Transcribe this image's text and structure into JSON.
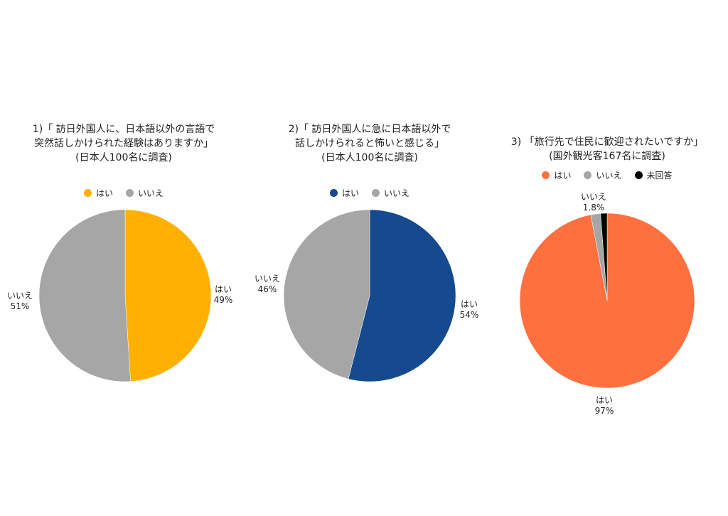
{
  "chart_data": [
    {
      "type": "pie",
      "title_lines": [
        "1)「 訪日外国人に、日本語以外の言語で",
        "突然話しかけられた経験はありますか」",
        "(日本人100名に調査)"
      ],
      "legend": [
        "はい",
        "いいえ"
      ],
      "slices": [
        {
          "label": "はい",
          "value": 49,
          "value_label": "49%",
          "color": "#FFB000"
        },
        {
          "label": "いいえ",
          "value": 51,
          "value_label": "51%",
          "color": "#A6A6A6"
        }
      ]
    },
    {
      "type": "pie",
      "title_lines": [
        "2)「 訪日外国人に急に日本語以外で",
        "話しかけられると怖いと感じる」",
        "(日本人100名に調査)"
      ],
      "legend": [
        "はい",
        "いいえ"
      ],
      "slices": [
        {
          "label": "はい",
          "value": 54,
          "value_label": "54%",
          "color": "#154A8F"
        },
        {
          "label": "いいえ",
          "value": 46,
          "value_label": "46%",
          "color": "#A6A6A6"
        }
      ]
    },
    {
      "type": "pie",
      "title_lines": [
        "3) 「旅行先で住民に歓迎されたいですか」",
        "(国外観光客167名に調査)"
      ],
      "legend": [
        "はい",
        "いいえ",
        "未回答"
      ],
      "slices": [
        {
          "label": "はい",
          "value": 97,
          "value_label": "97%",
          "color": "#FF703F"
        },
        {
          "label": "いいえ",
          "value": 1.8,
          "value_label": "1.8%",
          "color": "#A6A6A6"
        },
        {
          "label": "未回答",
          "value": 1.2,
          "value_label": "",
          "color": "#000000"
        }
      ]
    }
  ]
}
